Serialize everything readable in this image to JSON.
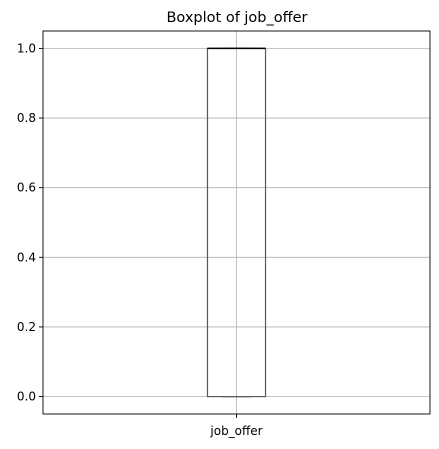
{
  "chart_data": {
    "type": "box",
    "title": "Boxplot of job_offer",
    "xlabel": "",
    "ylabel": "",
    "categories": [
      "job_offer"
    ],
    "boxes": [
      {
        "category": "job_offer",
        "whisker_low": 0.0,
        "q1": 0.0,
        "median": 1.0,
        "q3": 1.0,
        "whisker_high": 1.0
      }
    ],
    "ylim": [
      -0.05,
      1.05
    ],
    "yticks": [
      0.0,
      0.2,
      0.4,
      0.6,
      0.8,
      1.0
    ],
    "ytick_labels": [
      "0.0",
      "0.2",
      "0.4",
      "0.6",
      "0.8",
      "1.0"
    ],
    "grid": true,
    "colors": {
      "box": "#5a5a5a",
      "median": "#000000",
      "grid": "#b0b0b0",
      "axes": "#000000"
    }
  }
}
